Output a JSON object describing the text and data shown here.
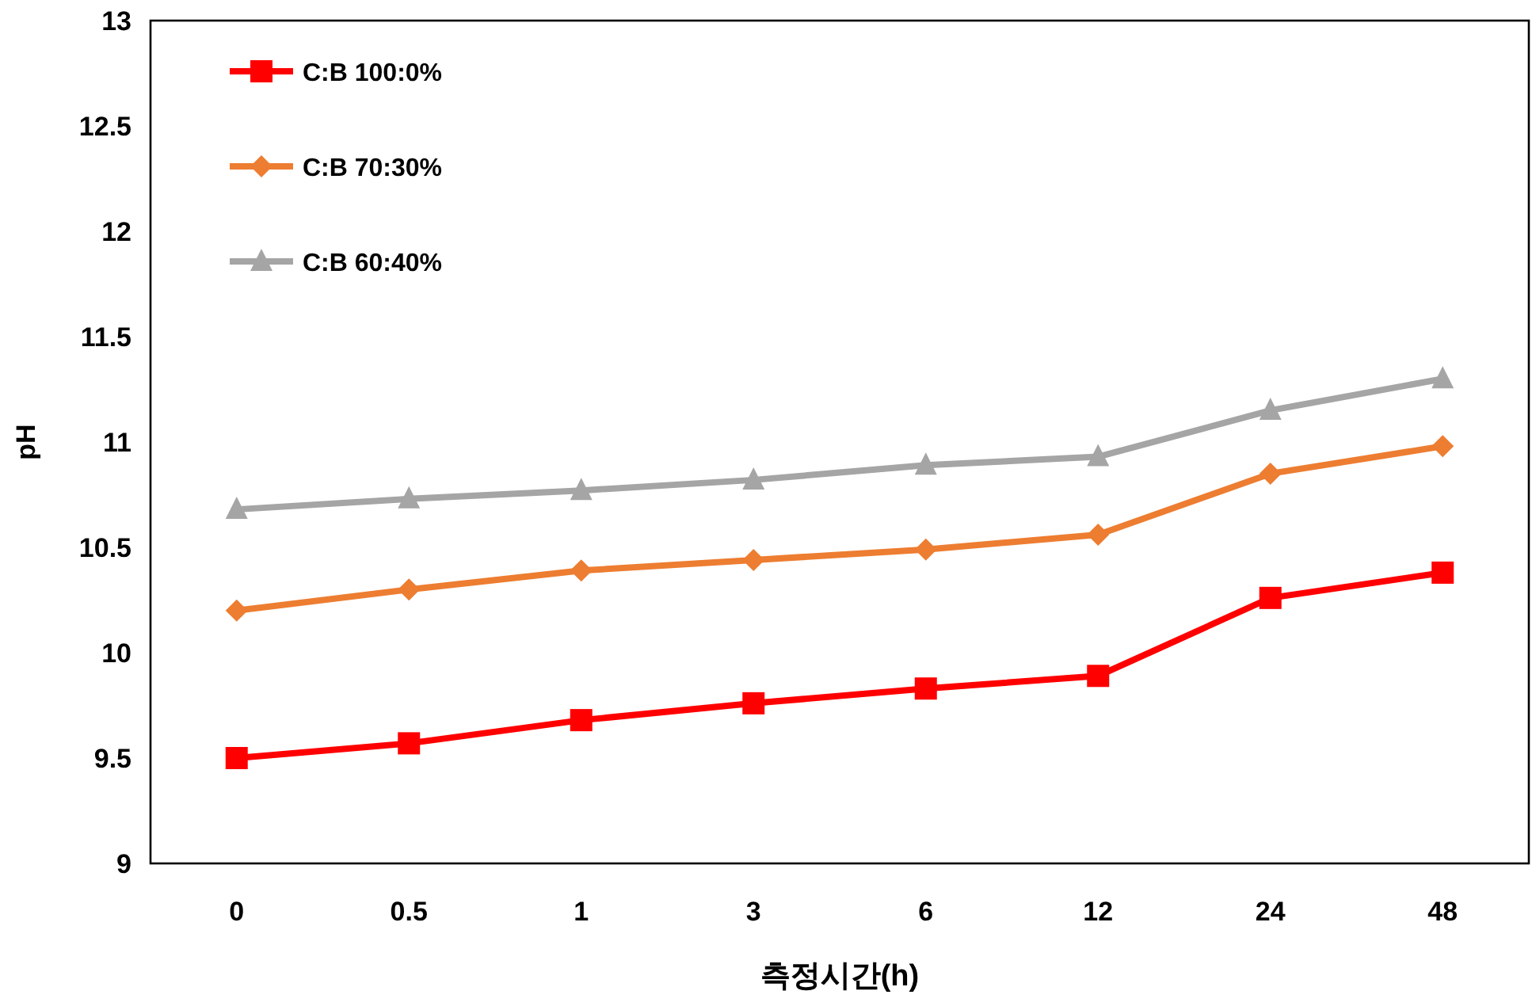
{
  "chart_data": {
    "type": "line",
    "xlabel": "측정시간(h)",
    "ylabel": "pH",
    "categories": [
      "0",
      "0.5",
      "1",
      "3",
      "6",
      "12",
      "24",
      "48"
    ],
    "series": [
      {
        "name": "C:B 100:0%",
        "color": "#ff0000",
        "marker": "square",
        "values": [
          9.5,
          9.57,
          9.68,
          9.76,
          9.83,
          9.89,
          10.26,
          10.38
        ]
      },
      {
        "name": "C:B 70:30%",
        "color": "#ed7d31",
        "marker": "diamond",
        "values": [
          10.2,
          10.3,
          10.39,
          10.44,
          10.49,
          10.56,
          10.85,
          10.98
        ]
      },
      {
        "name": "C:B 60:40%",
        "color": "#a5a5a5",
        "marker": "triangle",
        "values": [
          10.68,
          10.73,
          10.77,
          10.82,
          10.89,
          10.93,
          11.15,
          11.3
        ]
      }
    ],
    "ylim": [
      9,
      13
    ],
    "yticks": [
      9,
      9.5,
      10,
      10.5,
      11,
      11.5,
      12,
      12.5,
      13
    ],
    "legend": "top left"
  }
}
